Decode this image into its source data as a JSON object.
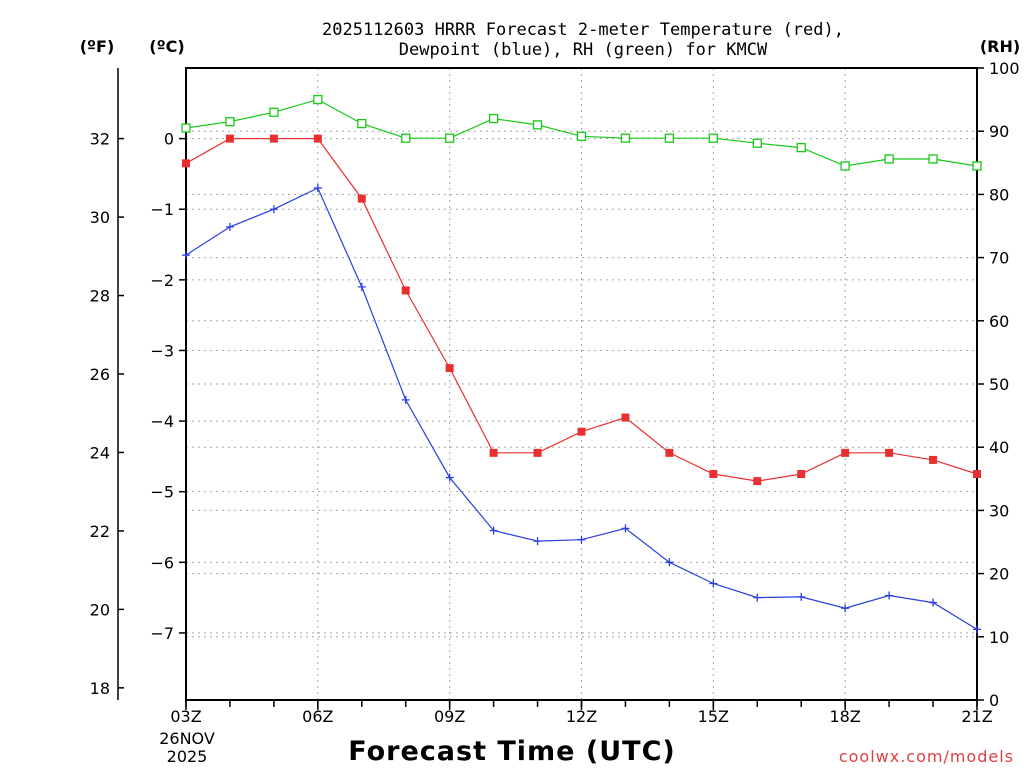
{
  "chart_data": {
    "type": "line",
    "title_line1": "2025112603 HRRR Forecast 2-meter Temperature (red),",
    "title_line2": "Dewpoint (blue), RH (green) for KMCW",
    "xlabel": "Forecast Time (UTC)",
    "date_line1": "26NOV",
    "date_line2": "2025",
    "left_axis_f_label": "(ºF)",
    "left_axis_c_label": "(ºC)",
    "right_axis_label": "(RH)",
    "watermark": "coolwx.com/models",
    "x": [
      3,
      4,
      5,
      6,
      7,
      8,
      9,
      10,
      11,
      12,
      13,
      14,
      15,
      16,
      17,
      18,
      19,
      20,
      21
    ],
    "xlim": [
      3,
      21
    ],
    "x_ticks": [
      {
        "value": 3,
        "label": "03Z"
      },
      {
        "value": 6,
        "label": "06Z"
      },
      {
        "value": 9,
        "label": "09Z"
      },
      {
        "value": 12,
        "label": "12Z"
      },
      {
        "value": 15,
        "label": "15Z"
      },
      {
        "value": 18,
        "label": "18Z"
      },
      {
        "value": 21,
        "label": "21Z"
      }
    ],
    "ylim_c": [
      -7.95,
      1.0
    ],
    "ylim_rh": [
      0,
      100
    ],
    "celsius_ticks": [
      {
        "value": 0,
        "label": "0"
      },
      {
        "value": -1,
        "label": "−1"
      },
      {
        "value": -2,
        "label": "−2"
      },
      {
        "value": -3,
        "label": "−3"
      },
      {
        "value": -4,
        "label": "−4"
      },
      {
        "value": -5,
        "label": "−5"
      },
      {
        "value": -6,
        "label": "−6"
      },
      {
        "value": -7,
        "label": "−7"
      }
    ],
    "fahrenheit_ticks": [
      {
        "value": 32,
        "label": "32"
      },
      {
        "value": 30,
        "label": "30"
      },
      {
        "value": 28,
        "label": "28"
      },
      {
        "value": 26,
        "label": "26"
      },
      {
        "value": 24,
        "label": "24"
      },
      {
        "value": 22,
        "label": "22"
      },
      {
        "value": 20,
        "label": "20"
      },
      {
        "value": 18,
        "label": "18"
      }
    ],
    "rh_ticks": [
      {
        "value": 100,
        "label": "100"
      },
      {
        "value": 90,
        "label": "90"
      },
      {
        "value": 80,
        "label": "80"
      },
      {
        "value": 70,
        "label": "70"
      },
      {
        "value": 60,
        "label": "60"
      },
      {
        "value": 50,
        "label": "50"
      },
      {
        "value": 40,
        "label": "40"
      },
      {
        "value": 30,
        "label": "30"
      },
      {
        "value": 20,
        "label": "20"
      },
      {
        "value": 10,
        "label": "10"
      },
      {
        "value": 0,
        "label": "0"
      }
    ],
    "series": [
      {
        "name": "2-meter Temperature",
        "axis": "celsius",
        "color": "#e83030",
        "marker": "filled-square",
        "values": [
          -0.35,
          0.0,
          0.0,
          0.0,
          -0.85,
          -2.15,
          -3.25,
          -4.45,
          -4.45,
          -4.15,
          -3.95,
          -4.45,
          -4.75,
          -4.85,
          -4.75,
          -4.45,
          -4.45,
          -4.55,
          -4.75
        ]
      },
      {
        "name": "Dewpoint",
        "axis": "celsius",
        "color": "#2a3fe0",
        "marker": "plus",
        "values": [
          -1.65,
          -1.25,
          -1.0,
          -0.7,
          -2.1,
          -3.7,
          -4.8,
          -5.55,
          -5.7,
          -5.68,
          -5.52,
          -6.0,
          -6.3,
          -6.5,
          -6.49,
          -6.65,
          -6.47,
          -6.57,
          -6.95
        ]
      },
      {
        "name": "RH",
        "axis": "rh",
        "color": "#18c818",
        "marker": "open-square",
        "values": [
          90.5,
          91.5,
          93.0,
          95.0,
          91.2,
          88.9,
          88.9,
          92.0,
          91.0,
          89.2,
          88.9,
          88.9,
          88.9,
          88.1,
          87.4,
          84.5,
          85.6,
          85.6,
          84.5
        ]
      }
    ]
  }
}
